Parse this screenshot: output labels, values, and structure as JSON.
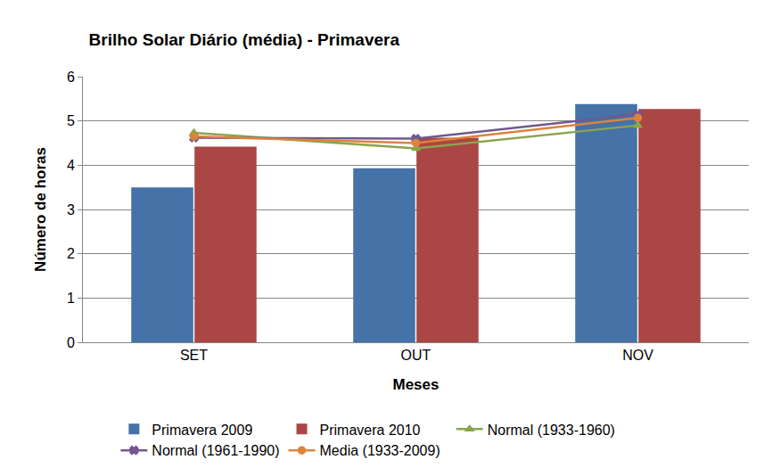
{
  "chart_data": {
    "type": "bar",
    "title": "Brilho Solar Diário (média) - Primavera",
    "x_label": "Meses",
    "y_label": "Número de horas",
    "categories": [
      "SET",
      "OUT",
      "NOV"
    ],
    "series": [
      {
        "name": "Primavera 2009",
        "type": "bar",
        "color": "#4572A7",
        "values": [
          3.5,
          3.93,
          5.38
        ]
      },
      {
        "name": "Primavera 2010",
        "type": "bar",
        "color": "#AA4643",
        "values": [
          4.42,
          4.62,
          5.27
        ]
      },
      {
        "name": "Normal (1933-1960)",
        "type": "line",
        "color": "#89A54E",
        "marker": "triangle-up",
        "values": [
          4.73,
          4.38,
          4.9
        ]
      },
      {
        "name": "Normal (1961-1990)",
        "type": "line",
        "color": "#71588F",
        "marker": "x",
        "values": [
          4.62,
          4.6,
          5.15
        ]
      },
      {
        "name": "Media (1933-2009)",
        "type": "line",
        "color": "#DB843D",
        "marker": "circle",
        "values": [
          4.65,
          4.5,
          5.07
        ]
      }
    ],
    "ylim": [
      0,
      6
    ],
    "yticks": [
      0,
      1,
      2,
      3,
      4,
      5,
      6
    ],
    "grid": true,
    "legend": "bottom"
  }
}
